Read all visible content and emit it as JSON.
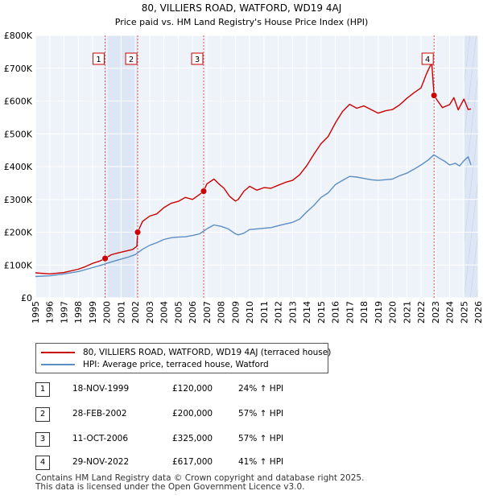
{
  "chart_data": {
    "type": "line",
    "title": "80, VILLIERS ROAD, WATFORD, WD19 4AJ",
    "subtitle": "Price paid vs. HM Land Registry's House Price Index (HPI)",
    "xlim": [
      1995,
      2026
    ],
    "ylim": [
      0,
      800000
    ],
    "x_ticks": [
      1995,
      1996,
      1997,
      1998,
      1999,
      2000,
      2001,
      2002,
      2003,
      2004,
      2005,
      2006,
      2007,
      2008,
      2009,
      2010,
      2011,
      2012,
      2013,
      2014,
      2015,
      2016,
      2017,
      2018,
      2019,
      2020,
      2021,
      2022,
      2023,
      2024,
      2025,
      2026
    ],
    "y_ticks": [
      0,
      100000,
      200000,
      300000,
      400000,
      500000,
      600000,
      700000,
      800000
    ],
    "y_tick_labels": [
      "£0",
      "£100K",
      "£200K",
      "£300K",
      "£400K",
      "£500K",
      "£600K",
      "£700K",
      "£800K"
    ],
    "grid": true,
    "series": [
      {
        "name": "80, VILLIERS ROAD, WATFORD, WD19 4AJ (terraced house)",
        "color": "#cc0000",
        "x": [
          1995.0,
          1996.0,
          1997.0,
          1998.0,
          1998.5,
          1999.0,
          1999.5,
          1999.88,
          2000.3,
          2000.8,
          2001.3,
          2001.8,
          2002.1,
          2002.16,
          2002.5,
          2003.0,
          2003.5,
          2004.0,
          2004.5,
          2005.0,
          2005.5,
          2006.0,
          2006.5,
          2006.78,
          2007.0,
          2007.5,
          2007.8,
          2008.2,
          2008.6,
          2009.0,
          2009.2,
          2009.6,
          2010.0,
          2010.5,
          2011.0,
          2011.5,
          2012.0,
          2012.5,
          2013.0,
          2013.5,
          2014.0,
          2014.5,
          2015.0,
          2015.5,
          2016.0,
          2016.5,
          2017.0,
          2017.5,
          2018.0,
          2018.5,
          2019.0,
          2019.5,
          2020.0,
          2020.5,
          2021.0,
          2021.5,
          2022.0,
          2022.4,
          2022.75,
          2022.91,
          2023.2,
          2023.5,
          2024.0,
          2024.3,
          2024.6,
          2025.0,
          2025.3,
          2025.5
        ],
        "values": [
          76000,
          73000,
          77000,
          87000,
          95000,
          105000,
          112000,
          120000,
          131000,
          137000,
          142000,
          147000,
          157000,
          200000,
          233000,
          249000,
          256000,
          275000,
          288000,
          294000,
          306000,
          300000,
          315000,
          325000,
          347000,
          362000,
          349000,
          334000,
          309000,
          295000,
          300000,
          325000,
          340000,
          328000,
          336000,
          334000,
          343000,
          352000,
          358000,
          375000,
          403000,
          438000,
          470000,
          492000,
          533000,
          568000,
          590000,
          578000,
          585000,
          574000,
          563000,
          570000,
          574000,
          588000,
          608000,
          625000,
          640000,
          685000,
          717000,
          617000,
          598000,
          580000,
          589000,
          610000,
          573000,
          606000,
          574000,
          576000
        ]
      },
      {
        "name": "HPI: Average price, terraced house, Watford",
        "color": "#5b8ec4",
        "x": [
          1995.0,
          1996.0,
          1997.0,
          1998.0,
          1998.5,
          1999.0,
          1999.5,
          2000.0,
          2000.5,
          2001.0,
          2001.5,
          2002.0,
          2002.5,
          2003.0,
          2003.5,
          2004.0,
          2004.5,
          2005.0,
          2005.5,
          2006.0,
          2006.5,
          2007.0,
          2007.5,
          2008.0,
          2008.5,
          2009.0,
          2009.2,
          2009.6,
          2010.0,
          2010.5,
          2011.0,
          2011.5,
          2012.0,
          2012.5,
          2013.0,
          2013.5,
          2014.0,
          2014.5,
          2015.0,
          2015.5,
          2016.0,
          2016.5,
          2017.0,
          2017.5,
          2018.0,
          2018.5,
          2019.0,
          2019.5,
          2020.0,
          2020.5,
          2021.0,
          2021.5,
          2022.0,
          2022.5,
          2022.9,
          2023.3,
          2023.7,
          2024.0,
          2024.4,
          2024.7,
          2025.0,
          2025.3,
          2025.5
        ],
        "values": [
          65000,
          67000,
          73000,
          80000,
          86000,
          92000,
          98000,
          105000,
          112000,
          118000,
          124000,
          132000,
          148000,
          160000,
          168000,
          178000,
          183000,
          185000,
          186000,
          190000,
          195000,
          210000,
          222000,
          218000,
          210000,
          195000,
          192000,
          197000,
          208000,
          210000,
          212000,
          214000,
          220000,
          225000,
          230000,
          240000,
          262000,
          282000,
          306000,
          320000,
          345000,
          358000,
          370000,
          368000,
          364000,
          360000,
          358000,
          360000,
          362000,
          372000,
          380000,
          392000,
          405000,
          420000,
          436000,
          425000,
          415000,
          405000,
          410000,
          402000,
          418000,
          430000,
          405000
        ]
      }
    ],
    "sales": [
      {
        "label": "1",
        "x": 1999.88,
        "value": 120000
      },
      {
        "label": "2",
        "x": 2002.16,
        "value": 200000
      },
      {
        "label": "3",
        "x": 2006.78,
        "value": 325000
      },
      {
        "label": "4",
        "x": 2022.91,
        "value": 617000
      }
    ],
    "shaded_ranges": [
      [
        1999.88,
        2002.16
      ],
      [
        2025.0,
        2026.0
      ]
    ]
  },
  "legend": {
    "property_label": "80, VILLIERS ROAD, WATFORD, WD19 4AJ (terraced house)",
    "hpi_label": "HPI: Average price, terraced house, Watford",
    "property_color": "#cc0000",
    "hpi_color": "#5b8ec4"
  },
  "transactions": [
    {
      "num": "1",
      "date": "18-NOV-1999",
      "price": "£120,000",
      "hpi": "24% ↑ HPI"
    },
    {
      "num": "2",
      "date": "28-FEB-2002",
      "price": "£200,000",
      "hpi": "57% ↑ HPI"
    },
    {
      "num": "3",
      "date": "11-OCT-2006",
      "price": "£325,000",
      "hpi": "57% ↑ HPI"
    },
    {
      "num": "4",
      "date": "29-NOV-2022",
      "price": "£617,000",
      "hpi": "41% ↑ HPI"
    }
  ],
  "footer": {
    "line1": "Contains HM Land Registry data © Crown copyright and database right 2025.",
    "line2": "This data is licensed under the Open Government Licence v3.0."
  }
}
